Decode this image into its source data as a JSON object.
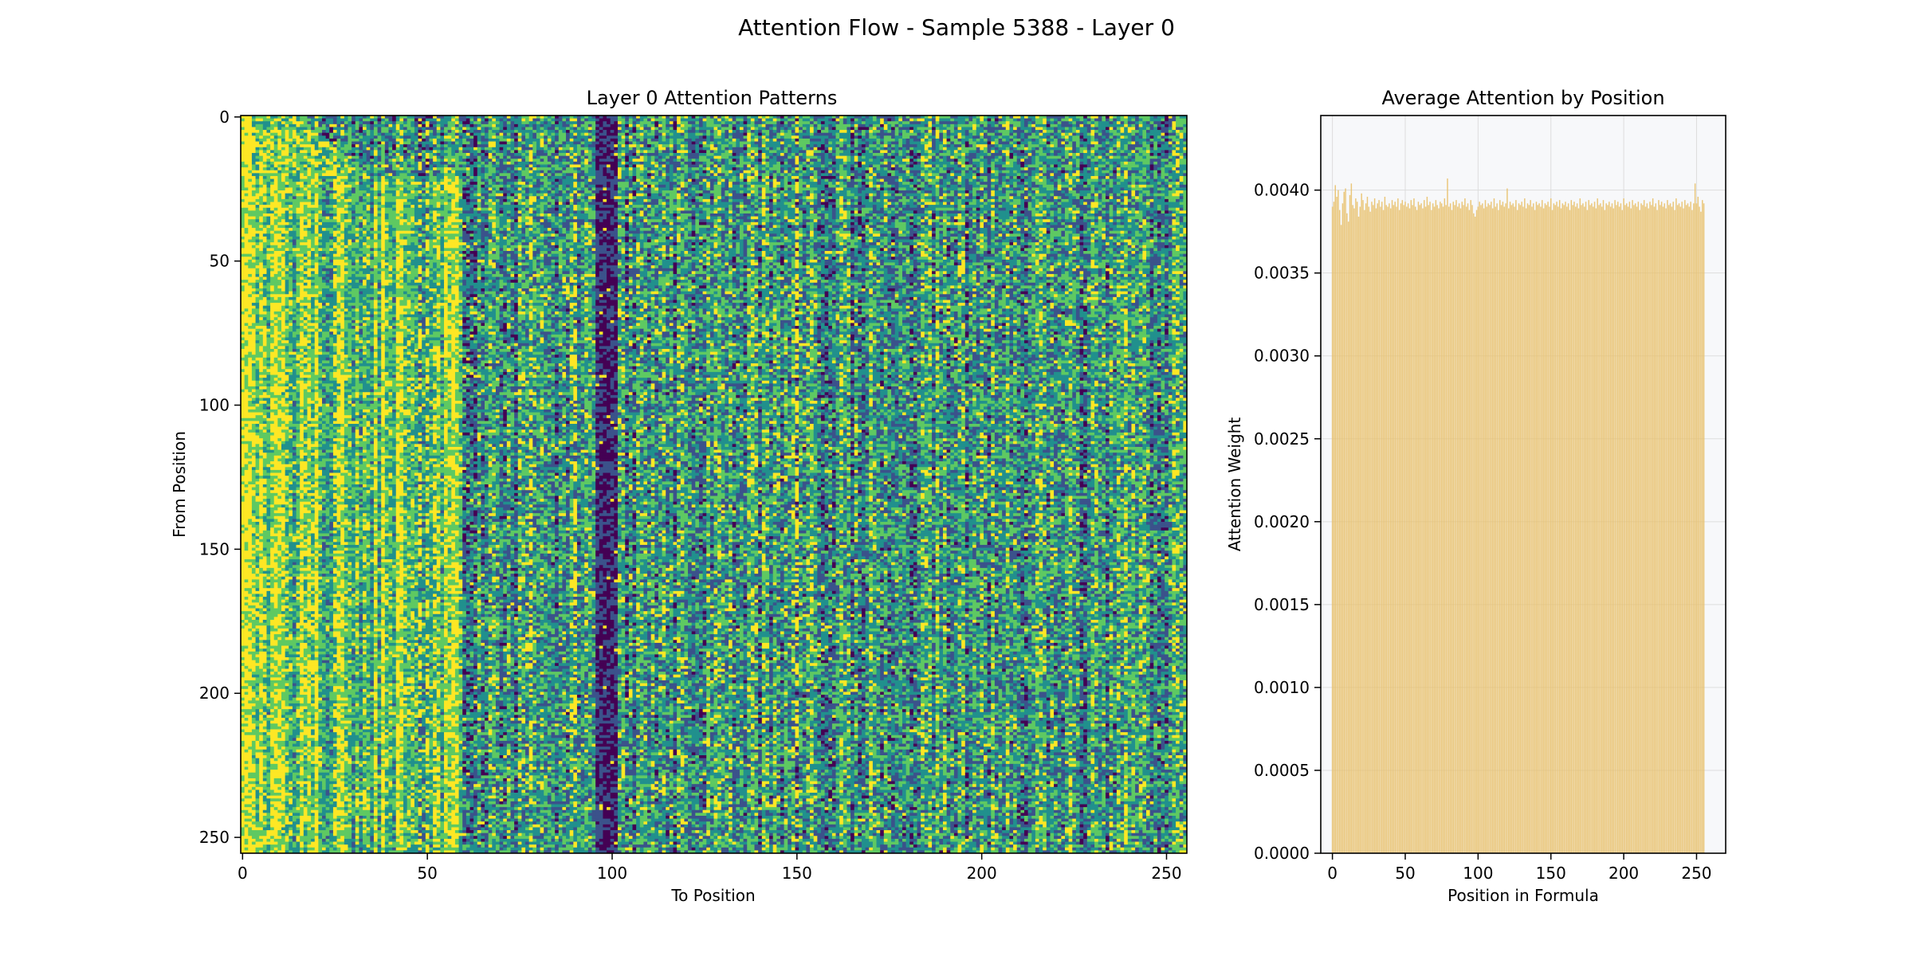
{
  "figure": {
    "suptitle": "Attention Flow - Sample 5388 - Layer 0"
  },
  "chart_data": [
    {
      "type": "heatmap",
      "title": "Layer 0 Attention Patterns",
      "xlabel": "To Position",
      "ylabel": "From Position",
      "n_rows": 256,
      "n_cols": 256,
      "xlim": [
        0,
        255
      ],
      "ylim": [
        255,
        0
      ],
      "xticks": [
        0,
        50,
        100,
        150,
        200,
        250
      ],
      "yticks": [
        0,
        50,
        100,
        150,
        200,
        250
      ],
      "colormap": "viridis",
      "y_axis_inverted": true,
      "grid": false,
      "notable_patterns": {
        "bright_columns": [
          0,
          1,
          2,
          3,
          20,
          25,
          48,
          50,
          52,
          78,
          90,
          150
        ],
        "dark_columns": [
          96,
          97,
          98,
          99,
          100,
          101
        ]
      }
    },
    {
      "type": "bar",
      "title": "Average Attention by Position",
      "xlabel": "Position in Formula",
      "ylabel": "Attention Weight",
      "xlim": [
        -8,
        270
      ],
      "ylim": [
        0,
        0.00445
      ],
      "xticks": [
        0,
        50,
        100,
        150,
        200,
        250
      ],
      "yticks": [
        0.0,
        0.0005,
        0.001,
        0.0015,
        0.002,
        0.0025,
        0.003,
        0.0035,
        0.004
      ],
      "ytick_labels": [
        "0.0000",
        "0.0005",
        "0.0010",
        "0.0015",
        "0.0020",
        "0.0025",
        "0.0030",
        "0.0035",
        "0.0040"
      ],
      "grid": true,
      "bar_color": "#E8C06A",
      "facecolor": "#F7F8FA",
      "n_positions": 256,
      "mean_value": 0.0039,
      "values": [
        0.0039,
        0.00393,
        0.00403,
        0.00396,
        0.004,
        0.00388,
        0.00379,
        0.00392,
        0.00399,
        0.00401,
        0.00386,
        0.00381,
        0.00397,
        0.00404,
        0.00391,
        0.00389,
        0.00395,
        0.00393,
        0.00384,
        0.0039,
        0.00398,
        0.00394,
        0.00388,
        0.00392,
        0.00396,
        0.0039,
        0.00387,
        0.00393,
        0.00391,
        0.00395,
        0.00389,
        0.00392,
        0.00394,
        0.0039,
        0.00393,
        0.00388,
        0.00396,
        0.00391,
        0.0039,
        0.00392,
        0.00389,
        0.00394,
        0.00391,
        0.00393,
        0.0039,
        0.00395,
        0.00388,
        0.00392,
        0.00394,
        0.00391,
        0.00393,
        0.0039,
        0.00392,
        0.00389,
        0.00394,
        0.00391,
        0.00395,
        0.0039,
        0.00388,
        0.00393,
        0.00391,
        0.00392,
        0.00389,
        0.00394,
        0.0039,
        0.00396,
        0.00391,
        0.00393,
        0.00388,
        0.00392,
        0.0039,
        0.00394,
        0.00391,
        0.00389,
        0.00393,
        0.00392,
        0.0039,
        0.00395,
        0.00391,
        0.00407,
        0.0039,
        0.00392,
        0.00388,
        0.00393,
        0.00391,
        0.00394,
        0.0039,
        0.00392,
        0.00389,
        0.00393,
        0.00391,
        0.00395,
        0.0039,
        0.00392,
        0.00388,
        0.00394,
        0.00391,
        0.00386,
        0.00384,
        0.00388,
        0.0039,
        0.00393,
        0.00391,
        0.00392,
        0.00389,
        0.00394,
        0.0039,
        0.00392,
        0.00391,
        0.00393,
        0.00389,
        0.00395,
        0.0039,
        0.00392,
        0.00388,
        0.00394,
        0.00391,
        0.00393,
        0.0039,
        0.00392,
        0.00401,
        0.00389,
        0.00393,
        0.00391,
        0.00392,
        0.0039,
        0.00394,
        0.00388,
        0.00392,
        0.00391,
        0.00393,
        0.0039,
        0.00395,
        0.00389,
        0.00392,
        0.00391,
        0.00394,
        0.0039,
        0.00392,
        0.00388,
        0.00393,
        0.00391,
        0.00392,
        0.0039,
        0.00394,
        0.00389,
        0.00392,
        0.00391,
        0.00393,
        0.0039,
        0.00395,
        0.00388,
        0.00392,
        0.00391,
        0.00393,
        0.0039,
        0.00394,
        0.00389,
        0.00392,
        0.00391,
        0.00393,
        0.0039,
        0.00392,
        0.00388,
        0.00394,
        0.00391,
        0.00393,
        0.0039,
        0.00392,
        0.00389,
        0.00395,
        0.00391,
        0.00392,
        0.0039,
        0.00393,
        0.00388,
        0.00394,
        0.00391,
        0.00392,
        0.0039,
        0.00393,
        0.00389,
        0.00395,
        0.00391,
        0.00392,
        0.0039,
        0.00394,
        0.00388,
        0.00392,
        0.00391,
        0.00393,
        0.0039,
        0.00392,
        0.00389,
        0.00394,
        0.00391,
        0.00393,
        0.0039,
        0.00392,
        0.00388,
        0.00395,
        0.00391,
        0.00392,
        0.0039,
        0.00393,
        0.00389,
        0.00394,
        0.00391,
        0.00392,
        0.0039,
        0.00393,
        0.00388,
        0.00392,
        0.00391,
        0.00394,
        0.0039,
        0.00392,
        0.00389,
        0.00393,
        0.00391,
        0.00395,
        0.0039,
        0.00392,
        0.00388,
        0.00394,
        0.00391,
        0.00393,
        0.0039,
        0.00392,
        0.00389,
        0.00394,
        0.00391,
        0.00392,
        0.0039,
        0.00393,
        0.00388,
        0.00395,
        0.00391,
        0.00392,
        0.0039,
        0.00393,
        0.00389,
        0.00394,
        0.00391,
        0.00392,
        0.0039,
        0.00393,
        0.00388,
        0.00392,
        0.00404,
        0.00392,
        0.00396,
        0.0039,
        0.00387,
        0.00394,
        0.00392
      ]
    }
  ]
}
